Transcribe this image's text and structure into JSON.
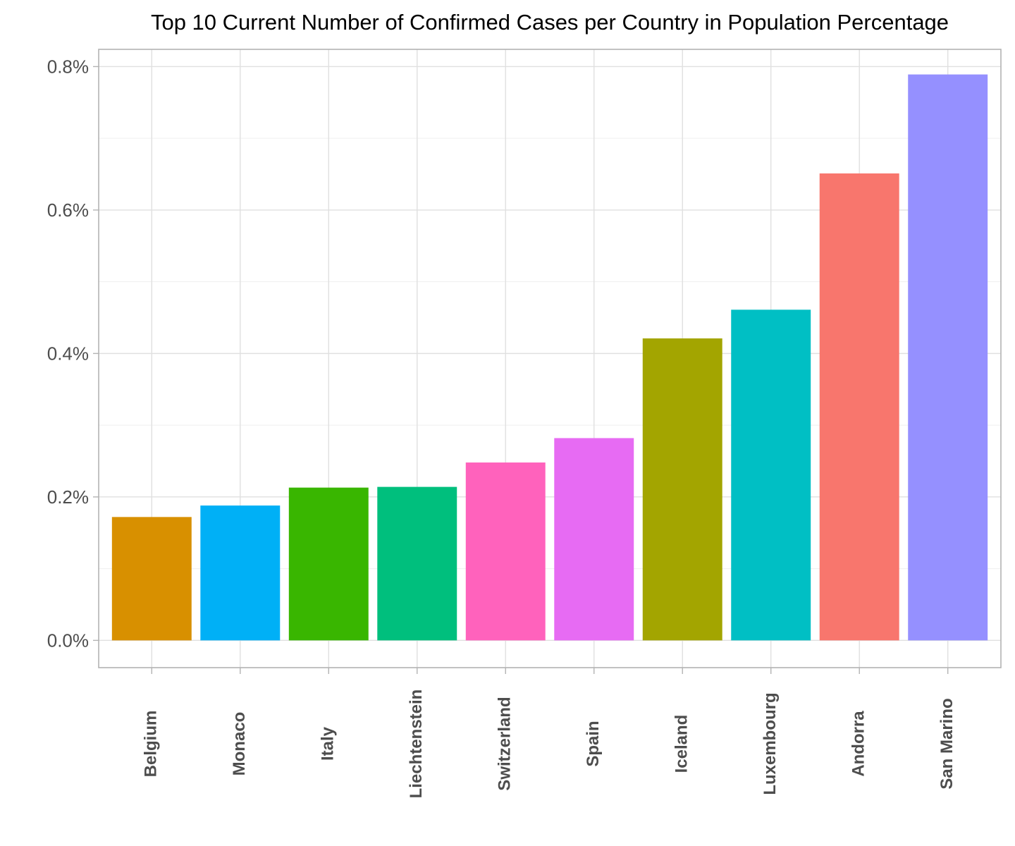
{
  "chart_data": {
    "type": "bar",
    "title": "Top 10 Current Number of Confirmed Cases per Country in Population Percentage",
    "xlabel": "",
    "ylabel": "",
    "categories": [
      "Belgium",
      "Monaco",
      "Italy",
      "Liechtenstein",
      "Switzerland",
      "Spain",
      "Iceland",
      "Luxembourg",
      "Andorra",
      "San Marino"
    ],
    "values": [
      0.172,
      0.188,
      0.213,
      0.214,
      0.248,
      0.282,
      0.421,
      0.461,
      0.651,
      0.789
    ],
    "colors": [
      "#D89000",
      "#00B0F6",
      "#39B600",
      "#00BF7D",
      "#FF62BC",
      "#E76BF3",
      "#A3A500",
      "#00BFC4",
      "#F8766D",
      "#9590FF"
    ],
    "ylim": [
      -0.038,
      0.824
    ],
    "yticks": [
      0.0,
      0.2,
      0.4,
      0.6,
      0.8
    ],
    "ytick_labels": [
      "0.0%",
      "0.2%",
      "0.4%",
      "0.6%",
      "0.8%"
    ],
    "grid": true,
    "legend": "none"
  }
}
